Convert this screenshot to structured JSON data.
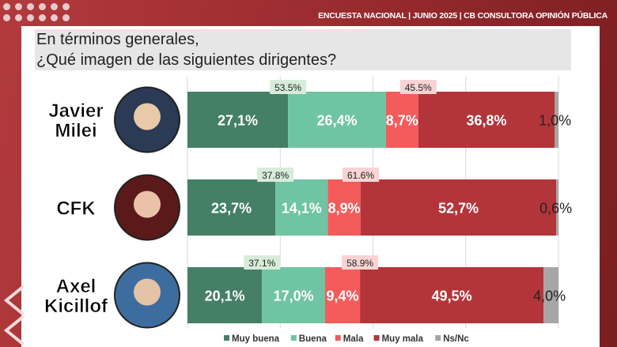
{
  "header": "ENCUESTA NACIONAL | JUNIO 2025 | CB CONSULTORA OPINIÓN PÚBLICA",
  "question": [
    "En términos generales,",
    "¿Qué imagen de las siguientes dirigentes?"
  ],
  "chart_data": {
    "type": "bar",
    "stacked": true,
    "orientation": "horizontal",
    "categories": [
      [
        "Javier",
        "Milei"
      ],
      [
        "CFK"
      ],
      [
        "Axel",
        "Kicillof"
      ]
    ],
    "series": [
      {
        "name": "Muy buena",
        "color": "#457f66",
        "values": [
          27.1,
          23.7,
          20.1
        ]
      },
      {
        "name": "Buena",
        "color": "#6fc4a3",
        "values": [
          26.4,
          14.1,
          17.0
        ]
      },
      {
        "name": "Mala",
        "color": "#f45b5b",
        "values": [
          8.7,
          8.9,
          9.4
        ]
      },
      {
        "name": "Muy mala",
        "color": "#b3353a",
        "values": [
          36.8,
          52.7,
          49.5
        ]
      },
      {
        "name": "Ns/Nc",
        "color": "#a6a6a6",
        "values": [
          1.0,
          0.6,
          4.0
        ]
      }
    ],
    "positive_totals": [
      "53.5%",
      "37.8%",
      "37.1%"
    ],
    "negative_totals": [
      "45.5%",
      "61.6%",
      "58.9%"
    ],
    "xlim": [
      0,
      100
    ],
    "grid": true,
    "legend": "bottom"
  }
}
